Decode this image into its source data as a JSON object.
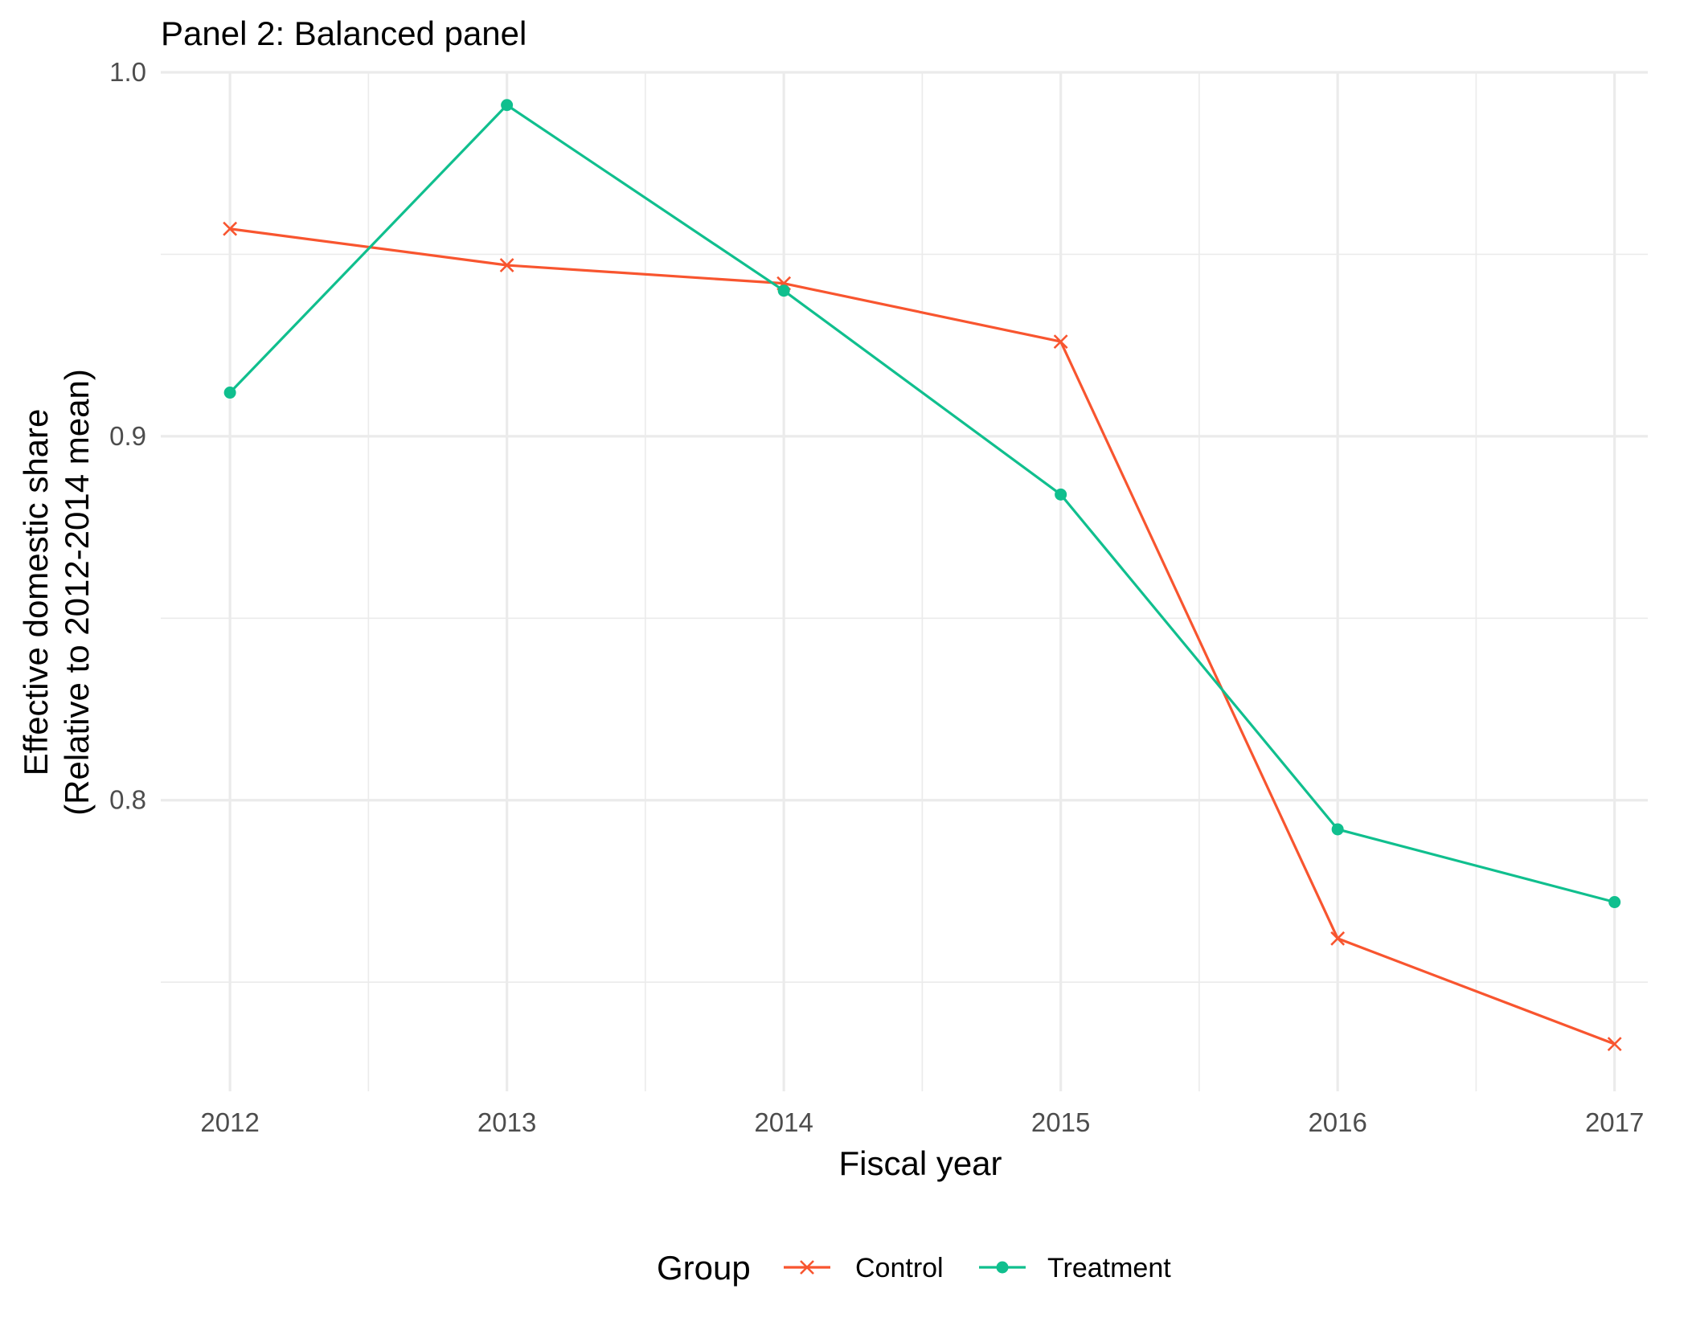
{
  "chart_data": {
    "type": "line",
    "title": "Panel 2: Balanced panel",
    "xlabel": "Fiscal year",
    "ylabel_line1": "Effective domestic share",
    "ylabel_line2": "(Relative to 2012-2014 mean)",
    "x": [
      2012,
      2013,
      2014,
      2015,
      2016,
      2017
    ],
    "x_tick_labels": [
      "2012",
      "2013",
      "2014",
      "2015",
      "2016",
      "2017"
    ],
    "xlim": [
      2011.75,
      2017.12
    ],
    "ylim": [
      0.72,
      1.0
    ],
    "y_ticks": [
      0.8,
      0.9,
      1.0
    ],
    "y_tick_labels": [
      "0.8",
      "0.9",
      "1.0"
    ],
    "y_minor_ticks": [
      0.75,
      0.85,
      0.95
    ],
    "grid": true,
    "series": [
      {
        "name": "Control",
        "color": "#F8552F",
        "marker": "x",
        "values": [
          0.957,
          0.947,
          0.942,
          0.926,
          0.762,
          0.733
        ]
      },
      {
        "name": "Treatment",
        "color": "#10BF8E",
        "marker": "circle",
        "values": [
          0.912,
          0.991,
          0.94,
          0.884,
          0.792,
          0.772
        ]
      }
    ],
    "legend": {
      "title": "Group",
      "position": "bottom"
    }
  }
}
